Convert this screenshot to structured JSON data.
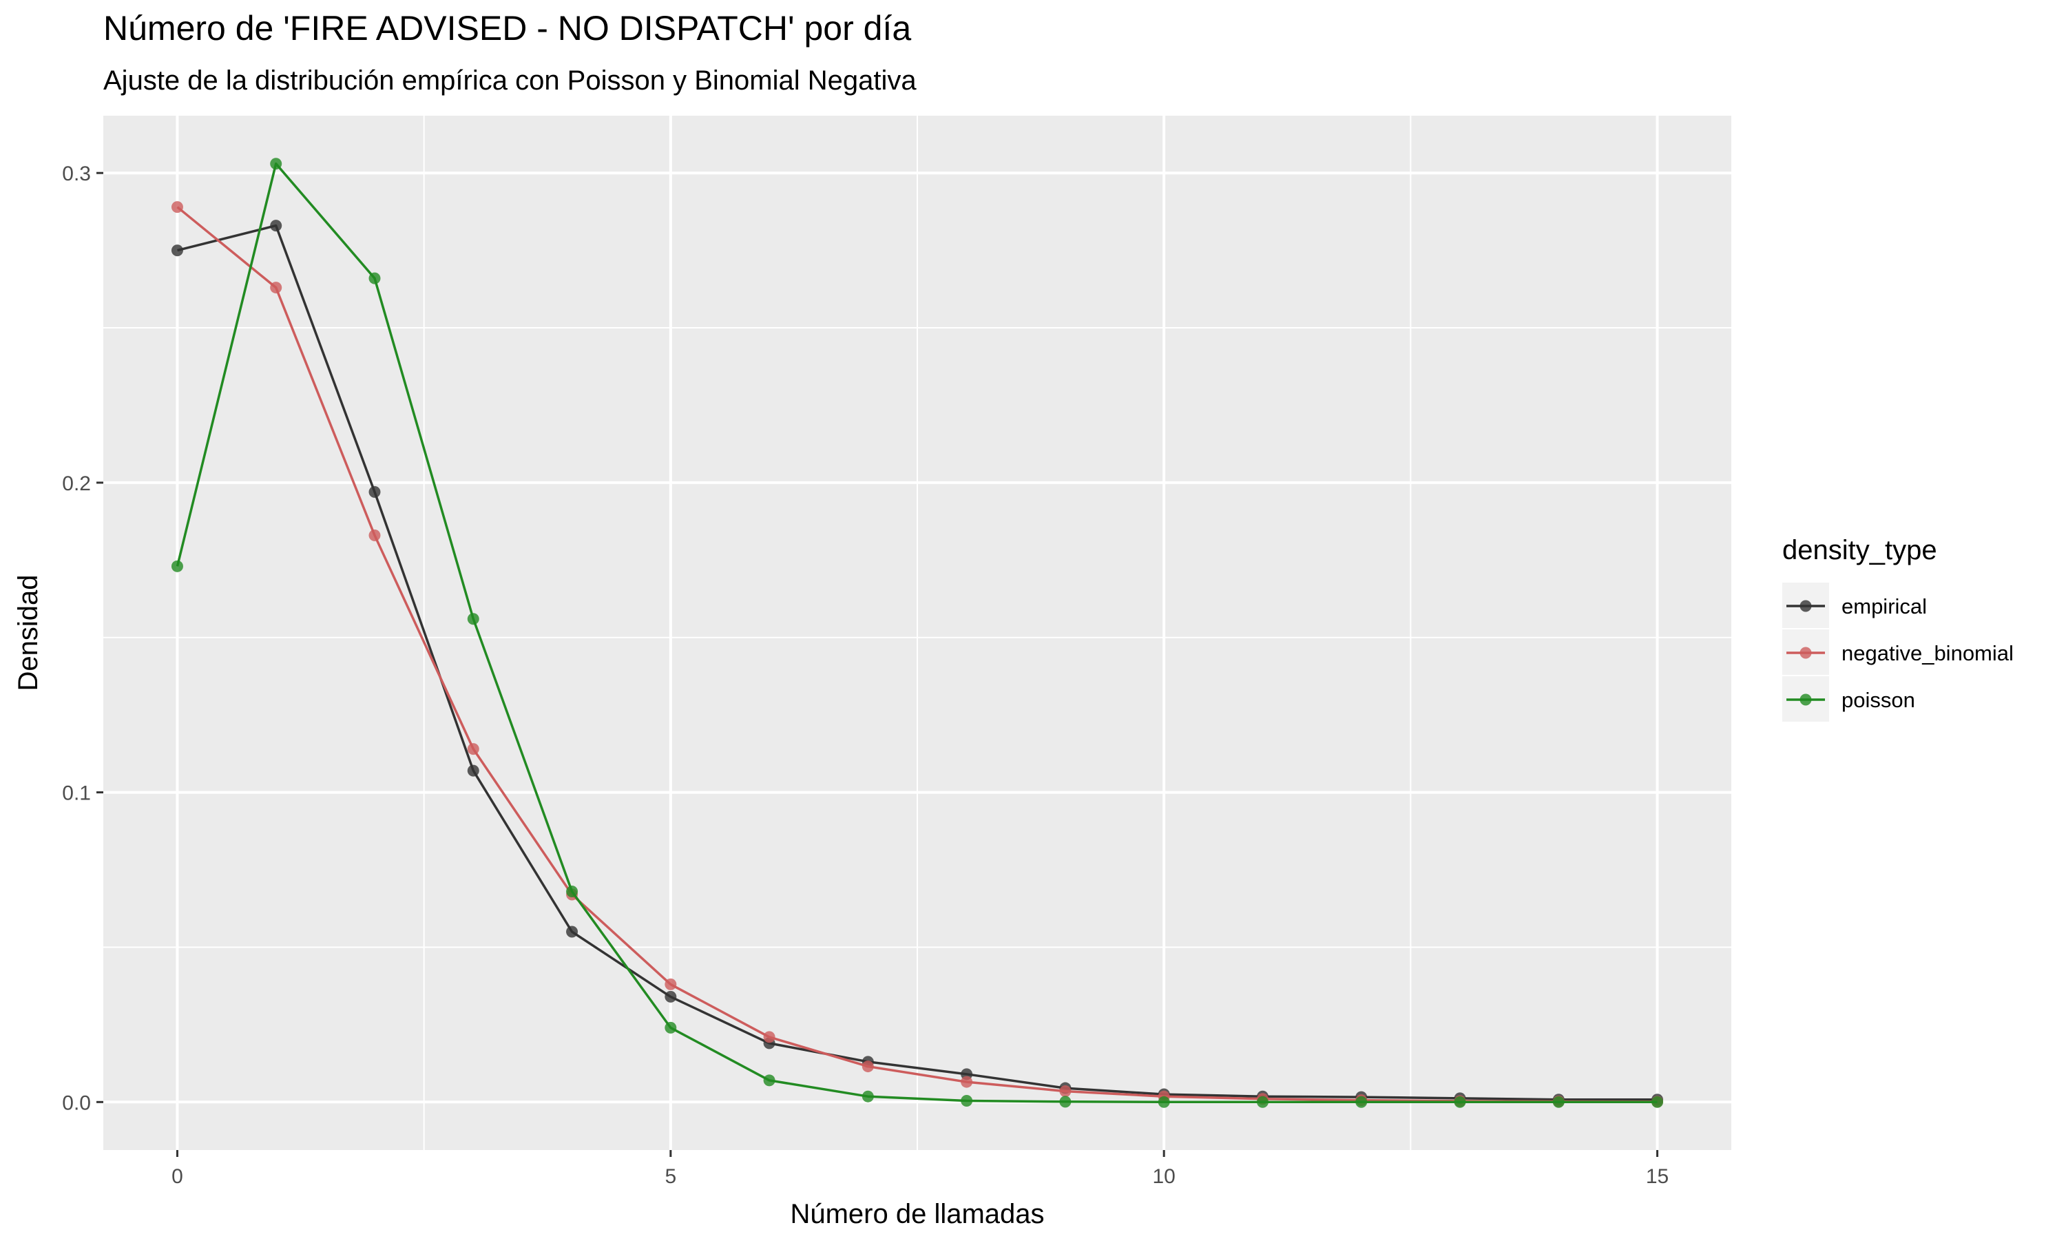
{
  "chart_data": {
    "type": "line",
    "title": "Número de 'FIRE ADVISED - NO DISPATCH' por día",
    "subtitle": "Ajuste de la distribución empírica con Poisson y Binomial Negativa",
    "xlabel": "Número de llamadas",
    "ylabel": "Densidad",
    "xlim": [
      -0.75,
      15.75
    ],
    "ylim": [
      -0.0155,
      0.3185
    ],
    "x_ticks": [
      0,
      5,
      10,
      15
    ],
    "y_ticks": [
      0.0,
      0.1,
      0.2,
      0.3
    ],
    "y_tick_labels": [
      "0.0",
      "0.1",
      "0.2",
      "0.3"
    ],
    "grid": true,
    "legend": {
      "title": "density_type",
      "position": "right"
    },
    "x": [
      0,
      1,
      2,
      3,
      4,
      5,
      6,
      7,
      8,
      9,
      10,
      11,
      12,
      13,
      14,
      15
    ],
    "series": [
      {
        "name": "empirical",
        "color": "#333333",
        "values": [
          0.275,
          0.283,
          0.197,
          0.107,
          0.055,
          0.034,
          0.019,
          0.013,
          0.009,
          0.0045,
          0.0025,
          0.0018,
          0.0016,
          0.0012,
          0.0008,
          0.0008
        ]
      },
      {
        "name": "negative_binomial",
        "color": "#CD5C5C",
        "values": [
          0.289,
          0.263,
          0.183,
          0.114,
          0.067,
          0.038,
          0.021,
          0.0115,
          0.0065,
          0.0035,
          0.0018,
          0.001,
          0.0006,
          0.0003,
          0.0002,
          0.0001
        ]
      },
      {
        "name": "poisson",
        "color": "#228B22",
        "values": [
          0.173,
          0.303,
          0.266,
          0.156,
          0.068,
          0.024,
          0.007,
          0.0018,
          0.0004,
          0.0001,
          0.0,
          0.0,
          0.0,
          0.0,
          0.0,
          0.0
        ]
      }
    ]
  }
}
